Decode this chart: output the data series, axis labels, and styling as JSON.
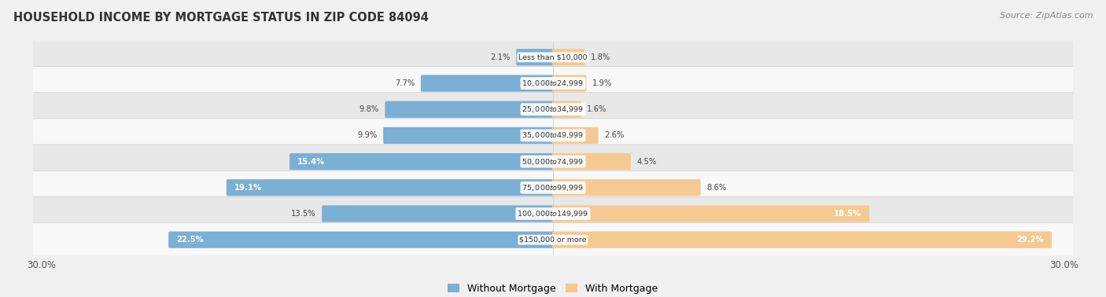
{
  "title": "HOUSEHOLD INCOME BY MORTGAGE STATUS IN ZIP CODE 84094",
  "source": "Source: ZipAtlas.com",
  "categories": [
    "Less than $10,000",
    "$10,000 to $24,999",
    "$25,000 to $34,999",
    "$35,000 to $49,999",
    "$50,000 to $74,999",
    "$75,000 to $99,999",
    "$100,000 to $149,999",
    "$150,000 or more"
  ],
  "without_mortgage": [
    2.1,
    7.7,
    9.8,
    9.9,
    15.4,
    19.1,
    13.5,
    22.5
  ],
  "with_mortgage": [
    1.8,
    1.9,
    1.6,
    2.6,
    4.5,
    8.6,
    18.5,
    29.2
  ],
  "without_mortgage_color": "#7BAFD4",
  "with_mortgage_color": "#F5C992",
  "xlim": 30.0,
  "bg_color": "#f0f0f0",
  "row_colors": [
    "#e8e8e8",
    "#f8f8f8"
  ],
  "bar_height": 0.52,
  "legend_labels": [
    "Without Mortgage",
    "With Mortgage"
  ]
}
